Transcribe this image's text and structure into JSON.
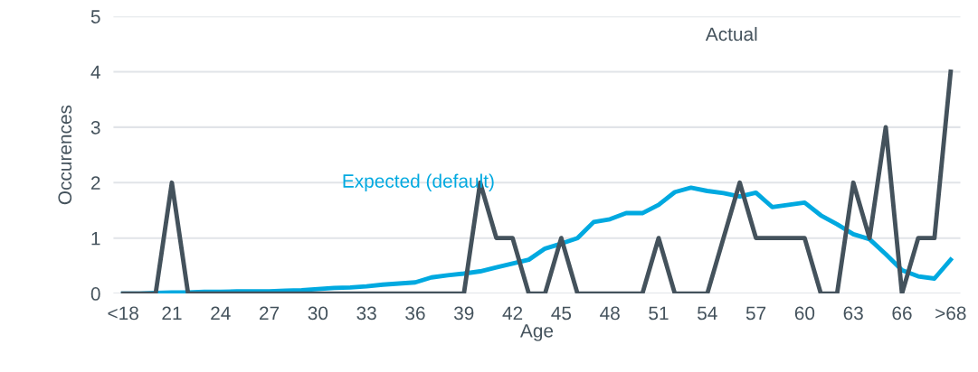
{
  "chart_data": {
    "type": "line",
    "xlabel": "Age",
    "ylabel": "Occurences",
    "categories": [
      "<18",
      null,
      null,
      "21",
      null,
      null,
      "24",
      null,
      null,
      "27",
      null,
      null,
      "30",
      null,
      null,
      "33",
      null,
      null,
      "36",
      null,
      null,
      "39",
      null,
      null,
      "42",
      null,
      null,
      "45",
      null,
      null,
      "48",
      null,
      null,
      "51",
      null,
      null,
      "54",
      null,
      null,
      "57",
      null,
      null,
      "60",
      null,
      null,
      "63",
      null,
      null,
      "66",
      null,
      null,
      ">68"
    ],
    "series": [
      {
        "name": "Actual",
        "color": "#44525c",
        "values": [
          0,
          0,
          0,
          2,
          0,
          0,
          0,
          0,
          0,
          0,
          0,
          0,
          0,
          0,
          0,
          0,
          0,
          0,
          0,
          0,
          0,
          0,
          2,
          1,
          1,
          0,
          0,
          1,
          0,
          0,
          0,
          0,
          0,
          1,
          0,
          0,
          0,
          1,
          2,
          1,
          1,
          1,
          1,
          0,
          0,
          2,
          1,
          3,
          0,
          1,
          1,
          4
        ]
      },
      {
        "name": "Expected (default)",
        "color": "#00a9e0",
        "values": [
          0,
          0,
          0.01,
          0.02,
          0.02,
          0.03,
          0.03,
          0.04,
          0.04,
          0.04,
          0.05,
          0.06,
          0.08,
          0.1,
          0.11,
          0.13,
          0.16,
          0.18,
          0.2,
          0.29,
          0.33,
          0.36,
          0.4,
          0.47,
          0.54,
          0.61,
          0.81,
          0.9,
          1.0,
          1.29,
          1.34,
          1.45,
          1.45,
          1.6,
          1.83,
          1.91,
          1.85,
          1.81,
          1.75,
          1.82,
          1.56,
          1.6,
          1.64,
          1.41,
          1.25,
          1.07,
          0.98,
          0.71,
          0.42,
          0.31,
          0.27,
          0.61
        ]
      }
    ],
    "ylim": [
      0,
      5
    ],
    "yticks": [
      0,
      1,
      2,
      3,
      4,
      5
    ],
    "grid": "y",
    "legend": false,
    "marker": "none",
    "line_style": "solid"
  }
}
